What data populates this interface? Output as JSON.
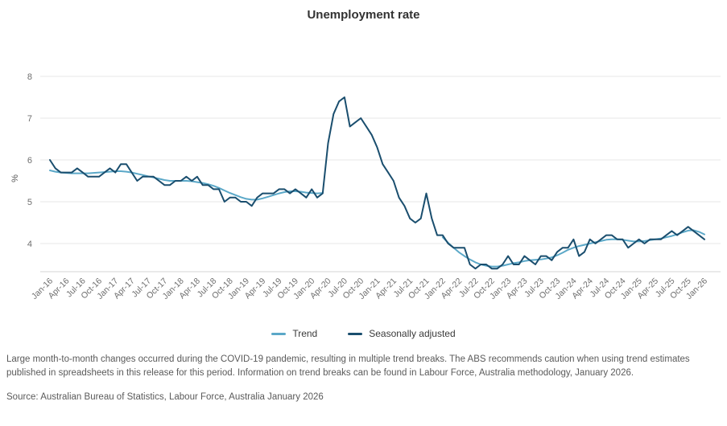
{
  "title": "Unemployment rate",
  "legend": {
    "items": [
      {
        "label": "Trend",
        "color": "#5ba8c8"
      },
      {
        "label": "Seasonally adjusted",
        "color": "#1a4e6e"
      }
    ]
  },
  "notes": {
    "footnote": "Large month-to-month changes occurred during the COVID-19 pandemic, resulting in multiple trend breaks. The ABS recommends caution when using trend estimates published in spreadsheets in this release for this period. Information on trend breaks can be found in Labour Force, Australia methodology, January 2026.",
    "source": "Source: Australian Bureau of Statistics, Labour Force, Australia January 2026"
  },
  "chart_data": {
    "type": "line",
    "title": "Unemployment rate",
    "xlabel": "",
    "ylabel": "%",
    "ylim": [
      3.3,
      8.3
    ],
    "yticks": [
      4,
      5,
      6,
      7,
      8
    ],
    "grid": true,
    "legend_position": "bottom",
    "frequency": "monthly",
    "x_start": "Jan-16",
    "x_end": "Jan-26",
    "tick_every": 3,
    "x_tick_labels": [
      "Jan-16",
      "Apr-16",
      "Jul-16",
      "Oct-16",
      "Jan-17",
      "Apr-17",
      "Jul-17",
      "Oct-17",
      "Jan-18",
      "Apr-18",
      "Jul-18",
      "Oct-18",
      "Jan-19",
      "Apr-19",
      "Jul-19",
      "Oct-19",
      "Jan-20",
      "Apr-20",
      "Jul-20",
      "Oct-20",
      "Jan-21",
      "Apr-21",
      "Jul-21",
      "Oct-21",
      "Jan-22",
      "Apr-22",
      "Jul-22",
      "Oct-22",
      "Jan-23",
      "Apr-23",
      "Jul-23",
      "Oct-23",
      "Jan-24",
      "Apr-24",
      "Jul-24",
      "Oct-24",
      "Jan-25",
      "Apr-25",
      "Jul-25",
      "Oct-25",
      "Jan-26"
    ],
    "series": [
      {
        "name": "Trend",
        "color": "#5ba8c8",
        "break_note": "trend suspended Apr-20 to Dec-21 (COVID-19 trend breaks)",
        "values": [
          5.75,
          5.72,
          5.7,
          5.69,
          5.68,
          5.68,
          5.68,
          5.68,
          5.69,
          5.7,
          5.71,
          5.72,
          5.73,
          5.73,
          5.72,
          5.7,
          5.67,
          5.64,
          5.61,
          5.58,
          5.55,
          5.52,
          5.5,
          5.5,
          5.5,
          5.5,
          5.49,
          5.47,
          5.45,
          5.42,
          5.38,
          5.33,
          5.27,
          5.21,
          5.16,
          5.11,
          5.07,
          5.05,
          5.05,
          5.08,
          5.12,
          5.16,
          5.2,
          5.23,
          5.25,
          5.25,
          5.24,
          5.22,
          5.21,
          5.2,
          5.21,
          null,
          null,
          null,
          null,
          null,
          null,
          null,
          null,
          null,
          null,
          null,
          null,
          null,
          null,
          null,
          null,
          null,
          null,
          null,
          null,
          null,
          4.15,
          4.02,
          3.9,
          3.79,
          3.7,
          3.62,
          3.55,
          3.5,
          3.47,
          3.45,
          3.45,
          3.47,
          3.5,
          3.53,
          3.55,
          3.58,
          3.6,
          3.61,
          3.62,
          3.64,
          3.67,
          3.72,
          3.78,
          3.85,
          3.9,
          3.94,
          3.97,
          4.0,
          4.03,
          4.06,
          4.09,
          4.1,
          4.1,
          4.09,
          4.07,
          4.05,
          4.05,
          4.06,
          4.08,
          4.1,
          4.12,
          4.15,
          4.18,
          4.22,
          4.27,
          4.31,
          4.32,
          4.28,
          4.22
        ]
      },
      {
        "name": "Seasonally adjusted",
        "color": "#1a4e6e",
        "values": [
          6.0,
          5.8,
          5.7,
          5.7,
          5.7,
          5.8,
          5.7,
          5.6,
          5.6,
          5.6,
          5.7,
          5.8,
          5.7,
          5.9,
          5.9,
          5.7,
          5.5,
          5.6,
          5.6,
          5.6,
          5.5,
          5.4,
          5.4,
          5.5,
          5.5,
          5.6,
          5.5,
          5.6,
          5.4,
          5.4,
          5.3,
          5.3,
          5.0,
          5.1,
          5.1,
          5.0,
          5.0,
          4.9,
          5.1,
          5.2,
          5.2,
          5.2,
          5.3,
          5.3,
          5.2,
          5.3,
          5.2,
          5.1,
          5.3,
          5.1,
          5.2,
          6.4,
          7.1,
          7.4,
          7.5,
          6.8,
          6.9,
          7.0,
          6.8,
          6.6,
          6.3,
          5.9,
          5.7,
          5.5,
          5.1,
          4.9,
          4.6,
          4.5,
          4.6,
          5.2,
          4.6,
          4.2,
          4.2,
          4.0,
          3.9,
          3.9,
          3.9,
          3.5,
          3.4,
          3.5,
          3.5,
          3.4,
          3.4,
          3.5,
          3.7,
          3.5,
          3.5,
          3.7,
          3.6,
          3.5,
          3.7,
          3.7,
          3.6,
          3.8,
          3.9,
          3.9,
          4.1,
          3.7,
          3.8,
          4.1,
          4.0,
          4.1,
          4.2,
          4.2,
          4.1,
          4.1,
          3.9,
          4.0,
          4.1,
          4.0,
          4.1,
          4.1,
          4.1,
          4.2,
          4.3,
          4.2,
          4.3,
          4.4,
          4.3,
          4.2,
          4.1
        ]
      }
    ]
  }
}
